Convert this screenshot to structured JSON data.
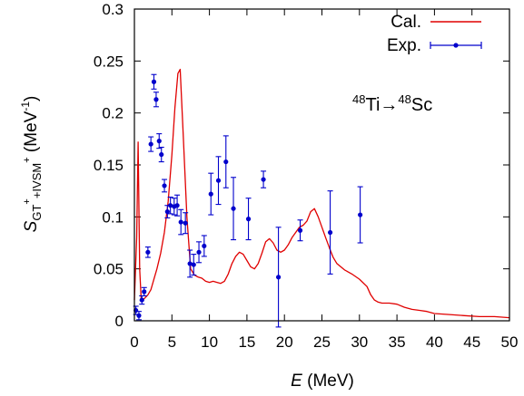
{
  "chart_data": {
    "type": "line",
    "xlabel_var": "E",
    "xlabel_unit": " (MeV)",
    "ylabel": {
      "s": "S",
      "sub1": "GT",
      "sup1": "+",
      "sub2": "+IVSM",
      "sup2": "+",
      "unit1": " (MeV",
      "unit_sup": "-1",
      "unit2": ")"
    },
    "xlim": [
      0,
      50
    ],
    "ylim": [
      0,
      0.3
    ],
    "x_ticks": [
      "0",
      "5",
      "10",
      "15",
      "20",
      "25",
      "30",
      "35",
      "40",
      "45",
      "50"
    ],
    "y_ticks": [
      "0",
      "0.05",
      "0.1",
      "0.15",
      "0.2",
      "0.25",
      "0.3"
    ],
    "annotation": {
      "sup_a": "48",
      "text_a": "Ti",
      "arrow": "→",
      "sup_b": "48",
      "text_b": "Sc"
    },
    "legend_position": "top-right",
    "series": [
      {
        "name": "Cal.",
        "kind": "line",
        "color": "#e00000",
        "x": [
          0.0,
          0.3,
          0.5,
          0.7,
          0.9,
          1.1,
          1.4,
          1.8,
          2.2,
          2.6,
          3.0,
          3.5,
          4.0,
          4.5,
          5.0,
          5.4,
          5.8,
          6.1,
          6.5,
          7.0,
          7.5,
          8.0,
          8.5,
          9.0,
          9.5,
          10.0,
          10.5,
          11.0,
          11.5,
          12.0,
          12.5,
          13.0,
          13.5,
          14.0,
          14.5,
          15.0,
          15.5,
          16.0,
          16.5,
          17.0,
          17.5,
          18.0,
          18.5,
          19.0,
          19.5,
          20.0,
          20.5,
          21.0,
          21.5,
          22.0,
          22.5,
          23.0,
          23.5,
          24.0,
          24.5,
          25.0,
          25.5,
          26.0,
          26.5,
          27.0,
          28.0,
          29.0,
          30.0,
          31.0,
          31.5,
          32.0,
          32.5,
          33.0,
          34.0,
          35.0,
          36.0,
          37.0,
          38.0,
          39.0,
          40.0,
          42.0,
          44.0,
          46.0,
          48.0,
          50.0
        ],
        "y": [
          0.02,
          0.08,
          0.172,
          0.05,
          0.022,
          0.02,
          0.022,
          0.025,
          0.03,
          0.04,
          0.05,
          0.065,
          0.085,
          0.115,
          0.16,
          0.205,
          0.238,
          0.242,
          0.18,
          0.1,
          0.05,
          0.044,
          0.042,
          0.041,
          0.038,
          0.037,
          0.038,
          0.037,
          0.036,
          0.038,
          0.045,
          0.055,
          0.062,
          0.066,
          0.064,
          0.058,
          0.052,
          0.05,
          0.055,
          0.065,
          0.076,
          0.079,
          0.075,
          0.068,
          0.066,
          0.068,
          0.073,
          0.08,
          0.085,
          0.09,
          0.092,
          0.096,
          0.105,
          0.108,
          0.1,
          0.09,
          0.08,
          0.07,
          0.061,
          0.055,
          0.049,
          0.045,
          0.04,
          0.033,
          0.025,
          0.02,
          0.018,
          0.017,
          0.017,
          0.016,
          0.013,
          0.011,
          0.01,
          0.009,
          0.007,
          0.006,
          0.005,
          0.004,
          0.004,
          0.003
        ]
      },
      {
        "name": "Exp.",
        "kind": "errorbar",
        "color": "#0000cc",
        "points": [
          {
            "x": 0.2,
            "y": 0.01,
            "err": 0.004
          },
          {
            "x": 0.6,
            "y": 0.005,
            "err": 0.004
          },
          {
            "x": 1.0,
            "y": 0.02,
            "err": 0.004
          },
          {
            "x": 1.3,
            "y": 0.028,
            "err": 0.004
          },
          {
            "x": 1.8,
            "y": 0.066,
            "err": 0.005
          },
          {
            "x": 2.2,
            "y": 0.17,
            "err": 0.007
          },
          {
            "x": 2.6,
            "y": 0.23,
            "err": 0.007
          },
          {
            "x": 2.9,
            "y": 0.213,
            "err": 0.007
          },
          {
            "x": 3.3,
            "y": 0.173,
            "err": 0.007
          },
          {
            "x": 3.6,
            "y": 0.16,
            "err": 0.007
          },
          {
            "x": 4.0,
            "y": 0.13,
            "err": 0.006
          },
          {
            "x": 4.4,
            "y": 0.105,
            "err": 0.006
          },
          {
            "x": 4.8,
            "y": 0.111,
            "err": 0.008
          },
          {
            "x": 5.3,
            "y": 0.11,
            "err": 0.008
          },
          {
            "x": 5.7,
            "y": 0.111,
            "err": 0.01
          },
          {
            "x": 6.2,
            "y": 0.095,
            "err": 0.012
          },
          {
            "x": 6.8,
            "y": 0.094,
            "err": 0.01
          },
          {
            "x": 7.4,
            "y": 0.055,
            "err": 0.013
          },
          {
            "x": 7.9,
            "y": 0.054,
            "err": 0.01
          },
          {
            "x": 8.6,
            "y": 0.066,
            "err": 0.01
          },
          {
            "x": 9.3,
            "y": 0.072,
            "err": 0.01
          },
          {
            "x": 10.2,
            "y": 0.122,
            "err": 0.02
          },
          {
            "x": 11.2,
            "y": 0.135,
            "err": 0.023
          },
          {
            "x": 12.2,
            "y": 0.153,
            "err": 0.025
          },
          {
            "x": 13.2,
            "y": 0.108,
            "err": 0.03
          },
          {
            "x": 15.2,
            "y": 0.098,
            "err": 0.02
          },
          {
            "x": 17.2,
            "y": 0.136,
            "err": 0.008
          },
          {
            "x": 19.2,
            "y": 0.042,
            "err": 0.048
          },
          {
            "x": 22.1,
            "y": 0.087,
            "err": 0.01
          },
          {
            "x": 26.1,
            "y": 0.085,
            "err": 0.04
          },
          {
            "x": 30.1,
            "y": 0.102,
            "err": 0.027
          }
        ]
      }
    ]
  }
}
